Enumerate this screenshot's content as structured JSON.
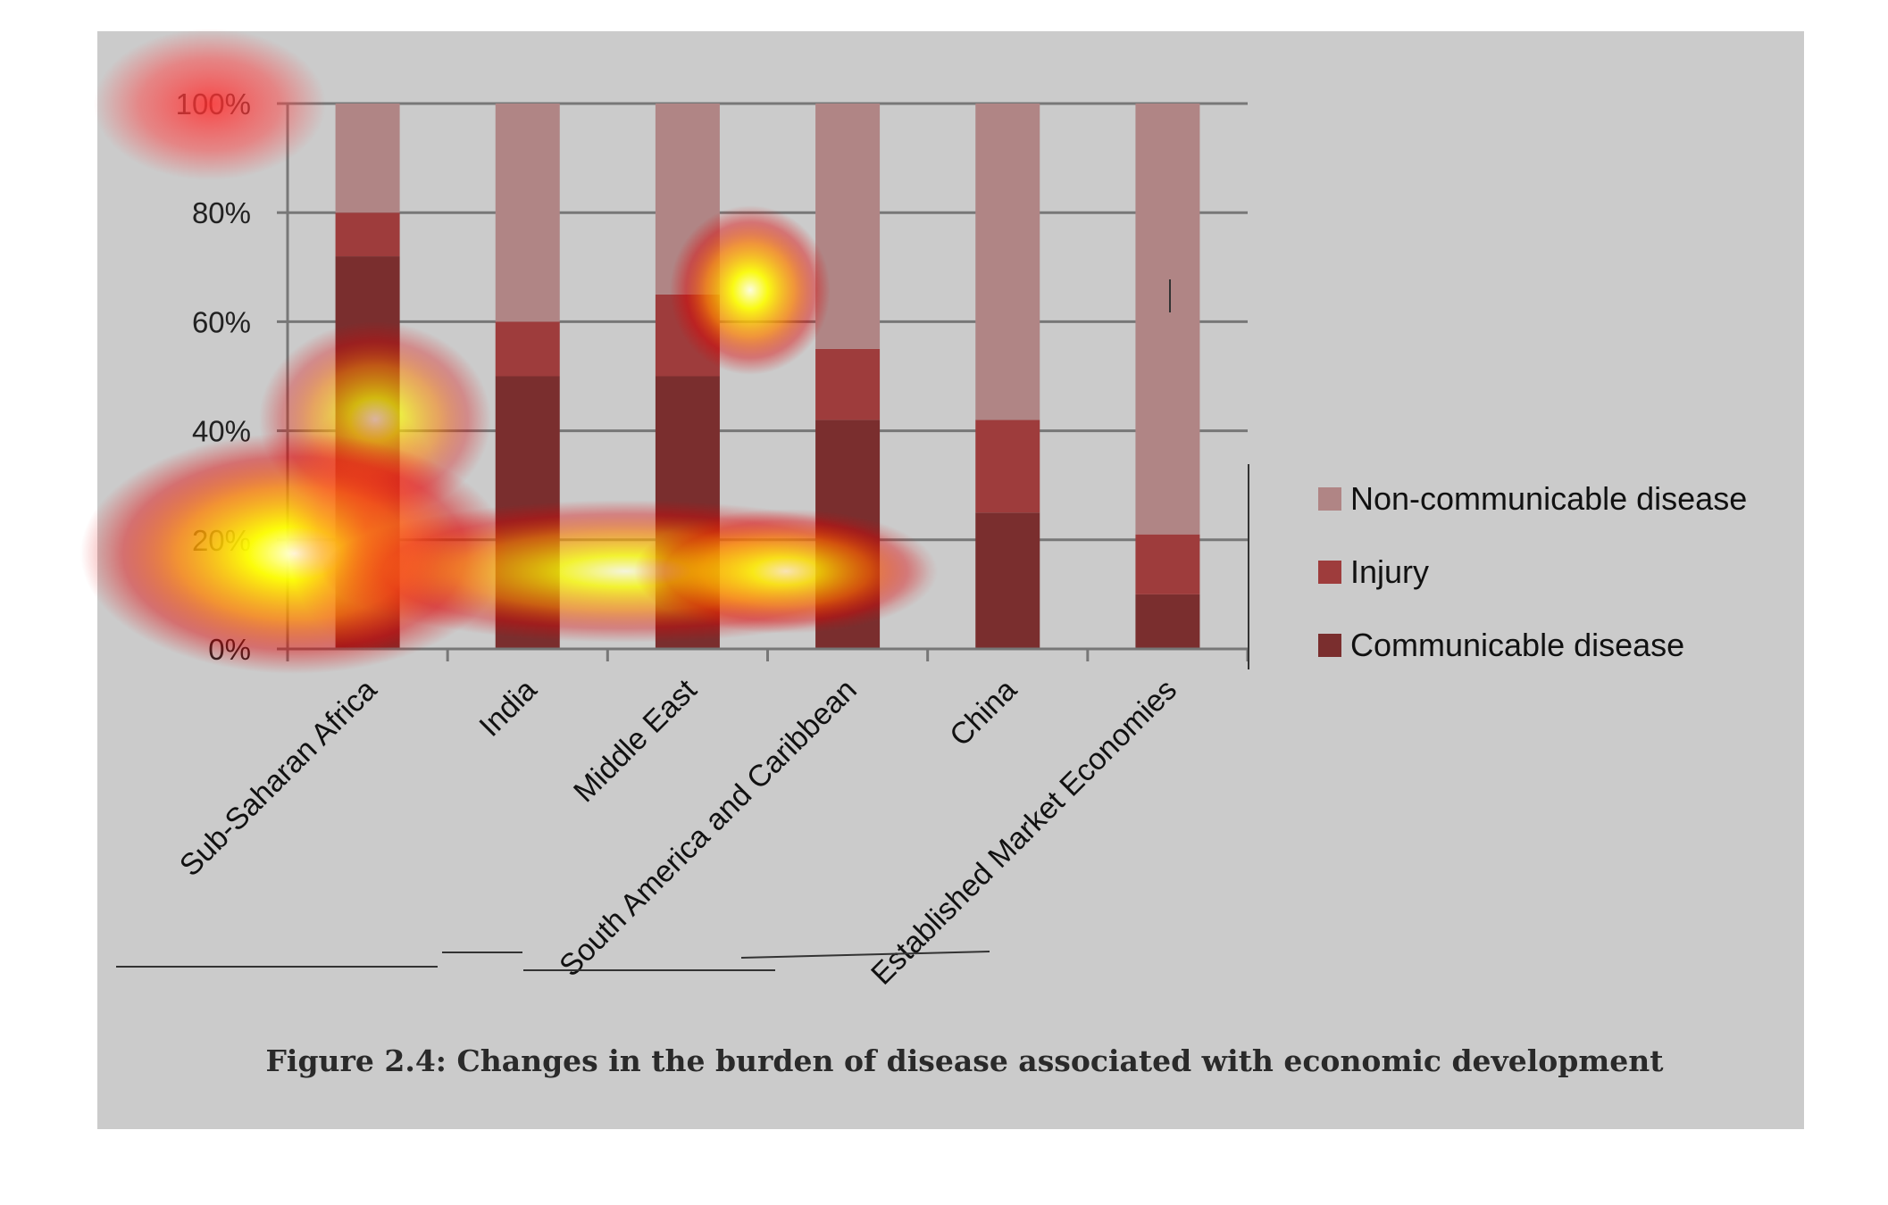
{
  "chart_data": {
    "type": "bar",
    "stacked": true,
    "percent": true,
    "title": "Figure 2.4: Changes in the burden of disease associated with economic development",
    "categories": [
      "Sub-Saharan Africa",
      "India",
      "Middle East",
      "South America and Caribbean",
      "China",
      "Established Market Economies"
    ],
    "series": [
      {
        "name": "Communicable disease",
        "values": [
          72,
          50,
          50,
          42,
          25,
          10
        ],
        "color": "#7a2e2e"
      },
      {
        "name": "Injury",
        "values": [
          8,
          10,
          15,
          13,
          17,
          11
        ],
        "color": "#9e3c3c"
      },
      {
        "name": "Non-communicable disease",
        "values": [
          20,
          40,
          35,
          45,
          58,
          79
        ],
        "color": "#b08585"
      }
    ],
    "y_ticks": [
      "0%",
      "20%",
      "40%",
      "60%",
      "80%",
      "100%"
    ],
    "ylim": [
      0,
      100
    ],
    "grid": true,
    "legend_position": "right",
    "legend_order": [
      "Non-communicable disease",
      "Injury",
      "Communicable disease"
    ],
    "background_color": "#cbcbcb"
  }
}
